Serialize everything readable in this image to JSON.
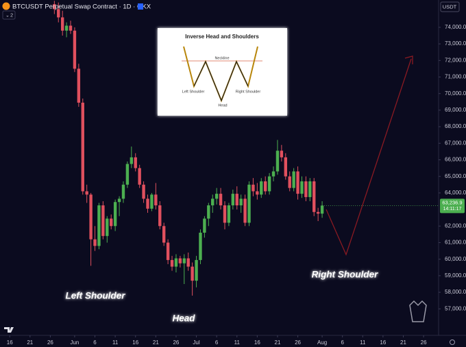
{
  "header": {
    "title": "BTCUSDT Perpetual Swap Contract · 1D · OKX",
    "indicator_count": "2",
    "currency": "USDT"
  },
  "inset": {
    "title": "Inverse Head and Shoulders",
    "neckline": "Neckline",
    "left": "Left Shoulder",
    "head": "Head",
    "right": "Right Shoulder"
  },
  "chart_data": {
    "type": "candlestick",
    "up_color": "#4caf50",
    "down_color": "#e0505e",
    "x": [
      11,
      12,
      13,
      14,
      15,
      16,
      17,
      18,
      19,
      20,
      21,
      22,
      23,
      24,
      25,
      26,
      27,
      28,
      29,
      30,
      31,
      32,
      33,
      34,
      35,
      36,
      37,
      38,
      39,
      40,
      41,
      42,
      43,
      44,
      45,
      46,
      47,
      48,
      49,
      50,
      51,
      52,
      53,
      54,
      55,
      56,
      57,
      58,
      59,
      60,
      61,
      62,
      63,
      64,
      65,
      66,
      67,
      68,
      69,
      70,
      71,
      72,
      73,
      74,
      75,
      76,
      77
    ],
    "open": [
      75400,
      75100,
      74600,
      73800,
      74100,
      73800,
      71500,
      69450,
      64100,
      63900,
      61200,
      60800,
      63250,
      61400,
      62450,
      62000,
      63450,
      63650,
      64500,
      65750,
      66150,
      65500,
      64500,
      63650,
      63050,
      63900,
      63250,
      62000,
      61000,
      59950,
      59550,
      60050,
      59750,
      60050,
      59550,
      58700,
      59950,
      61600,
      62450,
      63250,
      63650,
      63950,
      63250,
      62200,
      63250,
      63950,
      63250,
      63650,
      62200,
      64500,
      64100,
      63900,
      64700,
      64100,
      65000,
      65300,
      66550,
      66150,
      65000,
      64300,
      65300,
      63950,
      64700,
      63750,
      64700,
      62850,
      62750
    ],
    "high": [
      75600,
      75500,
      75000,
      74300,
      74400,
      74000,
      71800,
      69700,
      64500,
      64000,
      62000,
      63400,
      63500,
      62600,
      62700,
      63600,
      63800,
      64700,
      65900,
      66800,
      66400,
      65700,
      64700,
      63900,
      64000,
      64600,
      63500,
      62200,
      61200,
      60200,
      60300,
      60200,
      60300,
      60400,
      59800,
      60200,
      61800,
      62600,
      63400,
      63900,
      64300,
      64300,
      63500,
      63400,
      64200,
      64400,
      63900,
      63900,
      64700,
      64900,
      64600,
      64900,
      65000,
      65200,
      65600,
      67200,
      66900,
      66400,
      65300,
      65500,
      65600,
      65000,
      65000,
      64900,
      64900,
      63100,
      63500
    ],
    "low": [
      74800,
      74300,
      73500,
      73400,
      73600,
      71300,
      69200,
      63900,
      63400,
      59600,
      60500,
      60600,
      61200,
      61000,
      61800,
      61700,
      62600,
      63400,
      64300,
      65500,
      65300,
      64300,
      63400,
      62800,
      62900,
      63000,
      61800,
      60800,
      59700,
      59300,
      59200,
      59500,
      58500,
      59300,
      57800,
      58300,
      59700,
      61300,
      62000,
      62800,
      63300,
      63000,
      61800,
      62000,
      63000,
      63000,
      62800,
      62000,
      62000,
      63800,
      63600,
      63700,
      63900,
      63900,
      64700,
      65100,
      65900,
      64800,
      64100,
      64100,
      63600,
      63700,
      63500,
      63500,
      62600,
      62300,
      62500
    ],
    "close": [
      75100,
      74600,
      73800,
      74100,
      73800,
      71500,
      69450,
      64100,
      63900,
      61200,
      60800,
      63250,
      61400,
      62450,
      62000,
      63450,
      63650,
      64500,
      65750,
      66150,
      65500,
      64500,
      63650,
      63050,
      63900,
      63250,
      62000,
      61000,
      59950,
      59550,
      60050,
      59750,
      60050,
      59550,
      58700,
      59950,
      61600,
      62450,
      63250,
      63650,
      63950,
      63250,
      62200,
      63250,
      63950,
      63250,
      63650,
      62200,
      64500,
      64100,
      63900,
      64700,
      64100,
      65000,
      65300,
      66550,
      66150,
      65000,
      64300,
      65300,
      63950,
      64700,
      63750,
      64700,
      62850,
      62750,
      63236.9
    ],
    "price_label": "63,236.9",
    "countdown": "14:11:17",
    "xlim": [
      -2.4,
      105.7
    ],
    "ylim": [
      55400,
      75650
    ],
    "xticks": [
      {
        "value": 0,
        "label": "16"
      },
      {
        "value": 5,
        "label": "21"
      },
      {
        "value": 10,
        "label": "26"
      },
      {
        "value": 16,
        "label": "Jun"
      },
      {
        "value": 21,
        "label": "6"
      },
      {
        "value": 26,
        "label": "11"
      },
      {
        "value": 31,
        "label": "16"
      },
      {
        "value": 36,
        "label": "21"
      },
      {
        "value": 41,
        "label": "26"
      },
      {
        "value": 46,
        "label": "Jul"
      },
      {
        "value": 51,
        "label": "6"
      },
      {
        "value": 56,
        "label": "11"
      },
      {
        "value": 61,
        "label": "16"
      },
      {
        "value": 66,
        "label": "21"
      },
      {
        "value": 71,
        "label": "26"
      },
      {
        "value": 77,
        "label": "Aug"
      },
      {
        "value": 82,
        "label": "6"
      },
      {
        "value": 87,
        "label": "11"
      },
      {
        "value": 92,
        "label": "16"
      },
      {
        "value": 97,
        "label": "21"
      },
      {
        "value": 102,
        "label": "26"
      }
    ],
    "yticks": [
      {
        "value": 57000,
        "label": "57,000.0"
      },
      {
        "value": 58000,
        "label": "58,000.0"
      },
      {
        "value": 59000,
        "label": "59,000.0"
      },
      {
        "value": 60000,
        "label": "60,000.0"
      },
      {
        "value": 61000,
        "label": "61,000.0"
      },
      {
        "value": 62000,
        "label": "62,000.0"
      },
      {
        "value": 64000,
        "label": "64,000.0"
      },
      {
        "value": 65000,
        "label": "65,000.0"
      },
      {
        "value": 66000,
        "label": "66,000.0"
      },
      {
        "value": 67000,
        "label": "67,000.0"
      },
      {
        "value": 68000,
        "label": "68,000.0"
      },
      {
        "value": 69000,
        "label": "69,000.0"
      },
      {
        "value": 70000,
        "label": "70,000.0"
      },
      {
        "value": 71000,
        "label": "71,000.0"
      },
      {
        "value": 72000,
        "label": "72,000.0"
      },
      {
        "value": 73000,
        "label": "73,000.0"
      },
      {
        "value": 74000,
        "label": "74,000.0"
      }
    ],
    "annotations": [
      "Left Shoulder",
      "Head",
      "Right Shoulder"
    ]
  }
}
